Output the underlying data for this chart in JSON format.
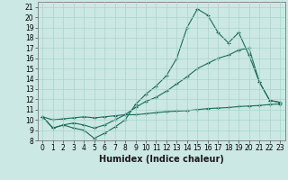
{
  "xlabel": "Humidex (Indice chaleur)",
  "bg_color": "#cce8e4",
  "line_color": "#1a6b5a",
  "grid_color": "#a8d4cc",
  "xlim": [
    -0.5,
    23.5
  ],
  "ylim": [
    8,
    21.5
  ],
  "xticks": [
    0,
    1,
    2,
    3,
    4,
    5,
    6,
    7,
    8,
    9,
    10,
    11,
    12,
    13,
    14,
    15,
    16,
    17,
    18,
    19,
    20,
    21,
    22,
    23
  ],
  "yticks": [
    8,
    9,
    10,
    11,
    12,
    13,
    14,
    15,
    16,
    17,
    18,
    19,
    20,
    21
  ],
  "line1_x": [
    0,
    1,
    2,
    3,
    4,
    5,
    6,
    7,
    8,
    9,
    10,
    11,
    12,
    13,
    14,
    15,
    16,
    17,
    18,
    19,
    20,
    21,
    22,
    23
  ],
  "line1_y": [
    10.3,
    9.2,
    9.5,
    9.2,
    9.0,
    8.2,
    8.7,
    9.3,
    10.0,
    11.5,
    12.5,
    13.3,
    14.3,
    16.0,
    19.0,
    20.8,
    20.2,
    18.5,
    17.5,
    18.5,
    16.3,
    13.7,
    11.9,
    11.7
  ],
  "line2_x": [
    0,
    1,
    2,
    3,
    4,
    5,
    6,
    7,
    8,
    9,
    10,
    11,
    12,
    13,
    14,
    15,
    16,
    17,
    18,
    19,
    20,
    21,
    22,
    23
  ],
  "line2_y": [
    10.3,
    9.2,
    9.5,
    9.7,
    9.5,
    9.2,
    9.5,
    10.0,
    10.5,
    11.2,
    11.8,
    12.2,
    12.8,
    13.5,
    14.2,
    15.0,
    15.5,
    16.0,
    16.3,
    16.8,
    17.0,
    13.7,
    11.9,
    11.7
  ],
  "line3_x": [
    0,
    1,
    2,
    3,
    4,
    5,
    6,
    7,
    8,
    9,
    10,
    11,
    12,
    13,
    14,
    15,
    16,
    17,
    18,
    19,
    20,
    21,
    22,
    23
  ],
  "line3_y": [
    10.3,
    10.0,
    10.1,
    10.2,
    10.3,
    10.2,
    10.3,
    10.4,
    10.5,
    10.5,
    10.6,
    10.7,
    10.8,
    10.85,
    10.9,
    11.0,
    11.1,
    11.15,
    11.2,
    11.3,
    11.35,
    11.4,
    11.5,
    11.55
  ],
  "marker": "+",
  "markersize": 3,
  "linewidth": 0.8,
  "xlabel_fontsize": 7,
  "tick_fontsize": 5.5
}
